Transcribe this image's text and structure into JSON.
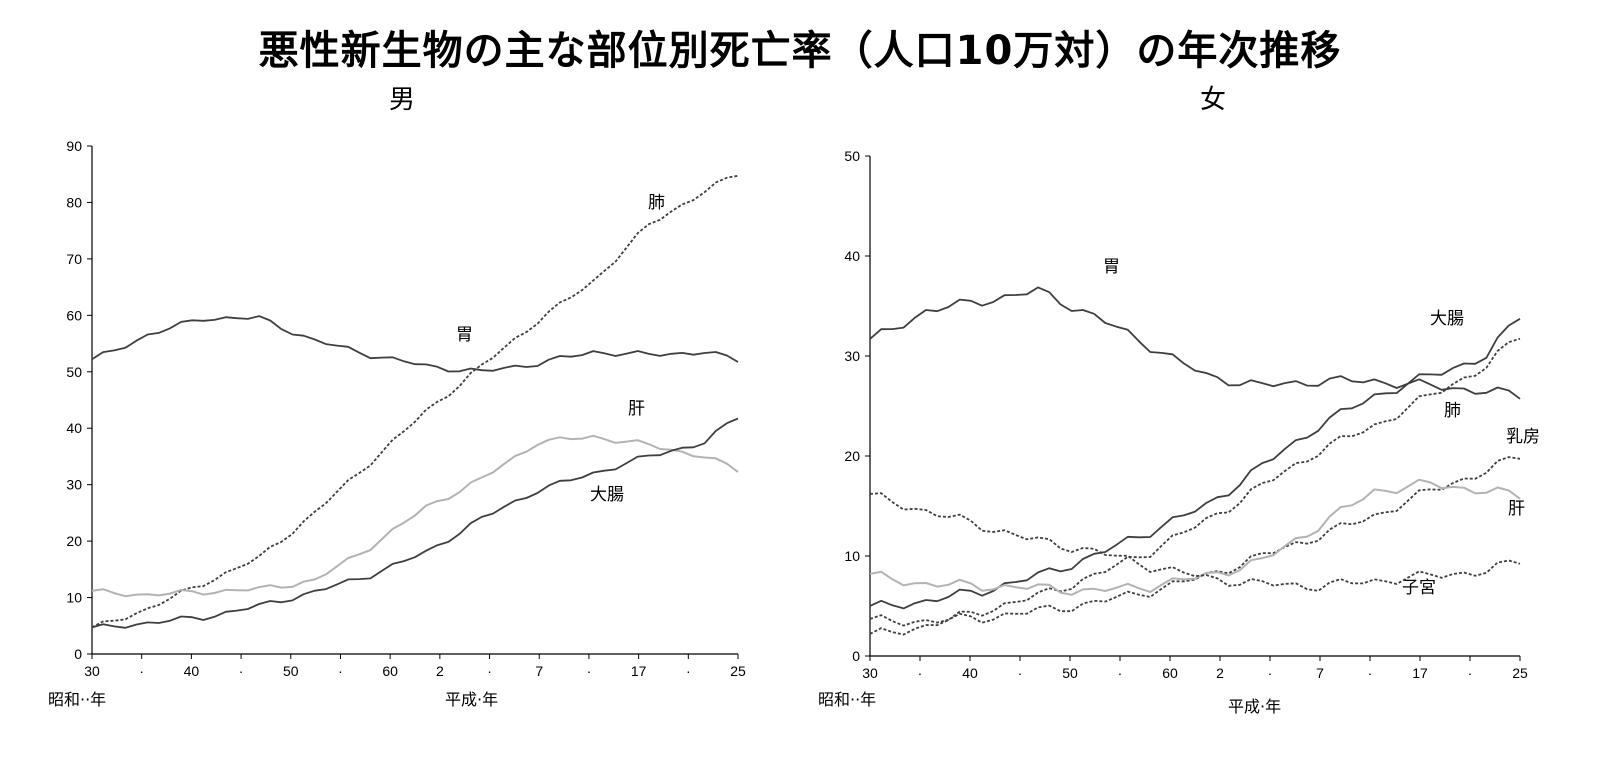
{
  "title": "悪性新生物の主な部位別死亡率（人口10万対）の年次推移",
  "colors": {
    "axis": "#000000",
    "dark": "#3f3f3f",
    "light": "#b3b3b3"
  },
  "chart_data": [
    {
      "type": "line",
      "title": "男",
      "xlabel_primary": "昭和··年",
      "xlabel_secondary": "平成·年",
      "ylim": [
        0,
        90
      ],
      "yticks": [
        "0",
        "10",
        "20",
        "30",
        "40",
        "50",
        "60",
        "70",
        "80",
        "90"
      ],
      "xticks": [
        "30",
        "·",
        "40",
        "·",
        "50",
        "·",
        "60",
        "2",
        "·",
        "7",
        "·",
        "17",
        "·",
        "25"
      ],
      "x": [
        1955,
        1960,
        1965,
        1970,
        1975,
        1980,
        1985,
        1990,
        1995,
        2000,
        2005,
        2010,
        2013
      ],
      "series": [
        {
          "name": "胃",
          "style": "solid-dark",
          "values": [
            52,
            56.5,
            59.5,
            59.5,
            55.5,
            53,
            51,
            50,
            51.5,
            53.5,
            53,
            53.5,
            52
          ]
        },
        {
          "name": "肺",
          "style": "dashed-dark",
          "values": [
            4.5,
            8,
            12.5,
            17,
            25,
            34,
            43,
            51,
            59,
            66,
            76,
            82,
            85
          ]
        },
        {
          "name": "肝",
          "style": "solid-light",
          "values": [
            11,
            10.5,
            11,
            11.5,
            13,
            19,
            26,
            31,
            37.5,
            38.5,
            37,
            35,
            32.5
          ]
        },
        {
          "name": "大腸",
          "style": "solid-dark",
          "values": [
            4.5,
            5.5,
            6.5,
            8.5,
            11,
            14,
            18,
            24,
            29,
            32,
            35,
            37.5,
            42
          ]
        }
      ],
      "labels": [
        {
          "series": "肺",
          "text": "肺"
        },
        {
          "series": "胃",
          "text": "胃"
        },
        {
          "series": "肝",
          "text": "肝"
        },
        {
          "series": "大腸",
          "text": "大腸"
        }
      ]
    },
    {
      "type": "line",
      "title": "女",
      "xlabel_primary": "昭和··年",
      "xlabel_secondary": "平成·年",
      "ylim": [
        0,
        50
      ],
      "yticks": [
        "0",
        "10",
        "20",
        "30",
        "40",
        "50"
      ],
      "xticks": [
        "30",
        "·",
        "40",
        "·",
        "50",
        "·",
        "60",
        "2",
        "·",
        "7",
        "·",
        "17",
        "·",
        "25"
      ],
      "x": [
        1955,
        1960,
        1965,
        1970,
        1975,
        1980,
        1985,
        1990,
        1995,
        2000,
        2005,
        2010,
        2013
      ],
      "series": [
        {
          "name": "胃",
          "style": "solid-dark",
          "values": [
            31.5,
            34.5,
            35.5,
            36.5,
            34,
            31,
            28,
            27,
            27.5,
            27.5,
            27,
            26.5,
            26
          ]
        },
        {
          "name": "大腸",
          "style": "solid-dark",
          "values": [
            4.8,
            5.5,
            6.5,
            8,
            10,
            12.5,
            15,
            19,
            23,
            26,
            28,
            30,
            34
          ]
        },
        {
          "name": "肺",
          "style": "dashed-dark",
          "values": [
            2,
            3,
            4.5,
            6,
            8,
            10.5,
            13.5,
            17,
            20.5,
            23,
            26,
            29,
            32
          ]
        },
        {
          "name": "乳房",
          "style": "dashed-dark",
          "values": [
            3.5,
            3.5,
            3.8,
            4.5,
            5.3,
            6.5,
            8,
            10,
            12,
            14,
            16.5,
            18.5,
            20
          ]
        },
        {
          "name": "肝",
          "style": "solid-light",
          "values": [
            8,
            7.2,
            7,
            6.8,
            6.5,
            7,
            8,
            9.5,
            13,
            16.5,
            17.2,
            16.5,
            16
          ]
        },
        {
          "name": "子宮",
          "style": "dashed-dark",
          "values": [
            16,
            14.5,
            13,
            11.5,
            10.5,
            9,
            7.8,
            7.2,
            7,
            7.5,
            8,
            8.5,
            9.5
          ]
        }
      ],
      "labels": [
        {
          "series": "胃",
          "text": "胃"
        },
        {
          "series": "大腸",
          "text": "大腸"
        },
        {
          "series": "肺",
          "text": "肺"
        },
        {
          "series": "乳房",
          "text": "乳房"
        },
        {
          "series": "肝",
          "text": "肝"
        },
        {
          "series": "子宮",
          "text": "子宮"
        }
      ]
    }
  ]
}
